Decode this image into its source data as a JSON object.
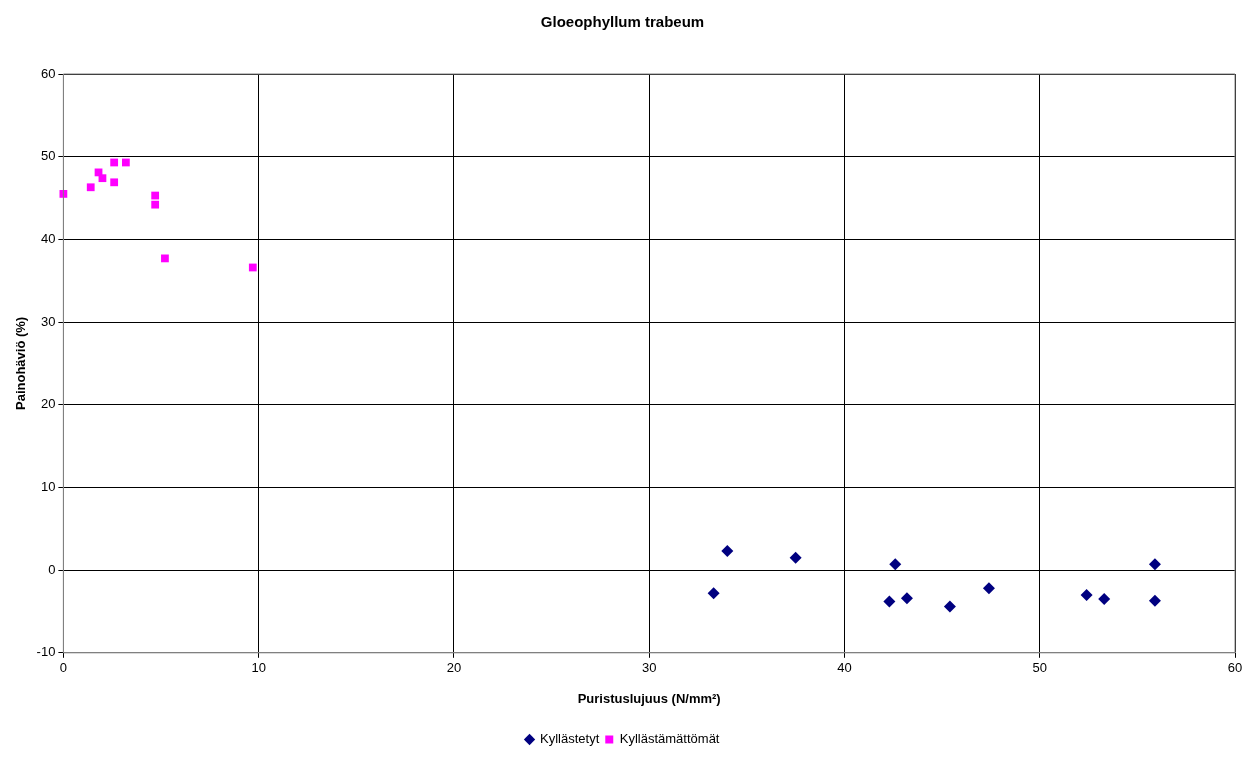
{
  "chart_data": {
    "type": "scatter",
    "title": "Gloeophyllum trabeum",
    "xlabel": "Puristuslujuus (N/mm²)",
    "ylabel": "Painohäviö (%)",
    "xlim": [
      0,
      60
    ],
    "xticks": [
      0,
      10,
      20,
      30,
      40,
      50,
      60
    ],
    "ylim": [
      -10,
      60
    ],
    "yticks": [
      -10,
      0,
      10,
      20,
      30,
      40,
      50,
      60
    ],
    "grid": true,
    "legend": "bottom",
    "series": [
      {
        "name": "Kyllästetyt",
        "color": "#000080",
        "marker": "diamond",
        "x": [
          33.3,
          34.0,
          37.5,
          42.3,
          42.6,
          43.2,
          45.4,
          47.4,
          52.4,
          53.3,
          55.9,
          55.9
        ],
        "values": [
          -2.8,
          2.3,
          1.5,
          -3.8,
          0.7,
          -3.4,
          -4.4,
          -2.2,
          -3.0,
          -3.5,
          0.7,
          -3.7
        ]
      },
      {
        "name": "Kyllästämättömät",
        "color": "#ff00ff",
        "marker": "square",
        "x": [
          0,
          1.4,
          1.8,
          2.0,
          2.6,
          2.6,
          3.2,
          4.7,
          4.7,
          5.2,
          9.7
        ],
        "values": [
          45.5,
          46.3,
          48.1,
          47.4,
          49.3,
          46.9,
          49.3,
          45.3,
          44.2,
          37.7,
          36.6
        ]
      }
    ]
  }
}
